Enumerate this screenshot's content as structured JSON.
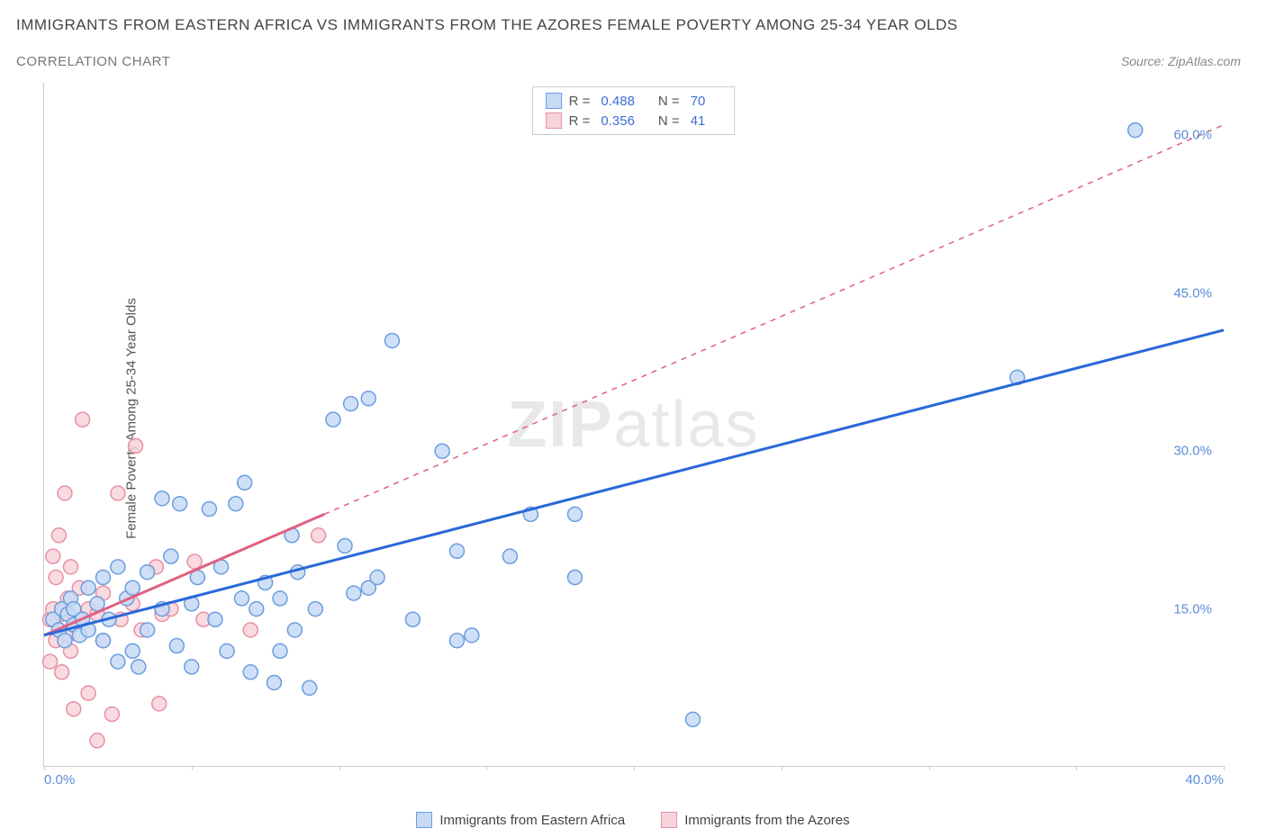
{
  "title": "IMMIGRANTS FROM EASTERN AFRICA VS IMMIGRANTS FROM THE AZORES FEMALE POVERTY AMONG 25-34 YEAR OLDS",
  "subtitle": "CORRELATION CHART",
  "source": "Source: ZipAtlas.com",
  "watermark_a": "ZIP",
  "watermark_b": "atlas",
  "y_axis_label": "Female Poverty Among 25-34 Year Olds",
  "chart": {
    "type": "scatter",
    "background_color": "#ffffff",
    "axis_color": "#cccccc",
    "tick_label_color": "#5b8dd6",
    "xlim": [
      0,
      40
    ],
    "ylim": [
      0,
      65
    ],
    "x_ticks": [
      0,
      5,
      10,
      15,
      20,
      25,
      30,
      35,
      40
    ],
    "x_tick_labels": {
      "0": "0.0%",
      "40": "40.0%"
    },
    "y_ticks": [
      15,
      30,
      45,
      60
    ],
    "y_tick_labels": {
      "15": "15.0%",
      "30": "30.0%",
      "45": "45.0%",
      "60": "60.0%"
    },
    "series": [
      {
        "id": "eastern_africa",
        "label": "Immigrants from Eastern Africa",
        "marker_fill": "#c7dbf5",
        "marker_stroke": "#6a9de0",
        "marker_opacity": 0.85,
        "marker_radius": 8,
        "line_color": "#2968d8",
        "line_width": 3,
        "line_dash": "none",
        "R": "0.488",
        "N": "70",
        "trend": {
          "x1": 0,
          "y1": 12.5,
          "x2": 40,
          "y2": 41.5
        },
        "points": [
          [
            0.3,
            14
          ],
          [
            0.5,
            13
          ],
          [
            0.6,
            15
          ],
          [
            0.7,
            12
          ],
          [
            0.8,
            14.5
          ],
          [
            0.9,
            16
          ],
          [
            1,
            13.5
          ],
          [
            1,
            15
          ],
          [
            1.2,
            12.5
          ],
          [
            1.3,
            14
          ],
          [
            1.5,
            17
          ],
          [
            1.5,
            13
          ],
          [
            1.8,
            15.5
          ],
          [
            2,
            18
          ],
          [
            2,
            12
          ],
          [
            2.2,
            14
          ],
          [
            2.5,
            19
          ],
          [
            2.5,
            10
          ],
          [
            2.8,
            16
          ],
          [
            3,
            11
          ],
          [
            3,
            17
          ],
          [
            3.2,
            9.5
          ],
          [
            3.5,
            18.5
          ],
          [
            3.5,
            13
          ],
          [
            4,
            25.5
          ],
          [
            4,
            15
          ],
          [
            4.3,
            20
          ],
          [
            4.5,
            11.5
          ],
          [
            4.6,
            25
          ],
          [
            5,
            15.5
          ],
          [
            5,
            9.5
          ],
          [
            5.2,
            18
          ],
          [
            5.6,
            24.5
          ],
          [
            5.8,
            14
          ],
          [
            6,
            19
          ],
          [
            6.2,
            11
          ],
          [
            6.5,
            25
          ],
          [
            6.7,
            16
          ],
          [
            6.8,
            27
          ],
          [
            7,
            9
          ],
          [
            7.2,
            15
          ],
          [
            7.5,
            17.5
          ],
          [
            7.8,
            8
          ],
          [
            8,
            16
          ],
          [
            8,
            11
          ],
          [
            8.4,
            22
          ],
          [
            8.5,
            13
          ],
          [
            8.6,
            18.5
          ],
          [
            9,
            7.5
          ],
          [
            9.2,
            15
          ],
          [
            9.8,
            33
          ],
          [
            10.2,
            21
          ],
          [
            10.4,
            34.5
          ],
          [
            10.5,
            16.5
          ],
          [
            11,
            17
          ],
          [
            11,
            35
          ],
          [
            11.3,
            18
          ],
          [
            11.8,
            40.5
          ],
          [
            12.5,
            14
          ],
          [
            13.5,
            30
          ],
          [
            14,
            12
          ],
          [
            14,
            20.5
          ],
          [
            14.5,
            12.5
          ],
          [
            15.8,
            20
          ],
          [
            16.5,
            24
          ],
          [
            18,
            24
          ],
          [
            18,
            18
          ],
          [
            22,
            4.5
          ],
          [
            33,
            37
          ],
          [
            37,
            60.5
          ]
        ]
      },
      {
        "id": "azores",
        "label": "Immigrants from the Azores",
        "marker_fill": "#f7d4db",
        "marker_stroke": "#e890a3",
        "marker_opacity": 0.85,
        "marker_radius": 8,
        "line_color": "#e06080",
        "line_width": 3,
        "line_dash": "none",
        "extrapolate_dash": "6,6",
        "R": "0.356",
        "N": "41",
        "trend_solid": {
          "x1": 0,
          "y1": 12.5,
          "x2": 9.5,
          "y2": 24
        },
        "trend_dash": {
          "x1": 9.5,
          "y1": 24,
          "x2": 40,
          "y2": 61
        },
        "points": [
          [
            0.2,
            14
          ],
          [
            0.2,
            10
          ],
          [
            0.3,
            15
          ],
          [
            0.3,
            20
          ],
          [
            0.4,
            12
          ],
          [
            0.4,
            18
          ],
          [
            0.5,
            13
          ],
          [
            0.5,
            22
          ],
          [
            0.6,
            14.5
          ],
          [
            0.6,
            9
          ],
          [
            0.7,
            15
          ],
          [
            0.7,
            26
          ],
          [
            0.8,
            12.5
          ],
          [
            0.8,
            16
          ],
          [
            0.9,
            11
          ],
          [
            0.9,
            19
          ],
          [
            1,
            13.5
          ],
          [
            1,
            5.5
          ],
          [
            1.2,
            14
          ],
          [
            1.2,
            17
          ],
          [
            1.3,
            33
          ],
          [
            1.5,
            15
          ],
          [
            1.5,
            7
          ],
          [
            1.8,
            14.5
          ],
          [
            1.8,
            2.5
          ],
          [
            2,
            12
          ],
          [
            2,
            16.5
          ],
          [
            2.3,
            5
          ],
          [
            2.5,
            26
          ],
          [
            2.6,
            14
          ],
          [
            3,
            15.5
          ],
          [
            3.1,
            30.5
          ],
          [
            3.3,
            13
          ],
          [
            3.8,
            19
          ],
          [
            3.9,
            6
          ],
          [
            4,
            14.5
          ],
          [
            4.3,
            15
          ],
          [
            5.1,
            19.5
          ],
          [
            5.4,
            14
          ],
          [
            7,
            13
          ],
          [
            9.3,
            22
          ]
        ]
      }
    ]
  },
  "legend_top_layout": {
    "stat1_label": "R =",
    "stat2_label": "N ="
  }
}
